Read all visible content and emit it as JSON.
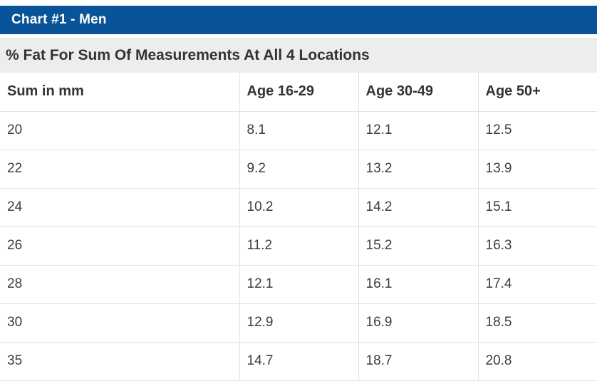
{
  "header": {
    "title": "Chart #1 - Men"
  },
  "caption": {
    "text": "% Fat For Sum Of Measurements At All 4 Locations"
  },
  "table": {
    "columns": [
      "Sum in mm",
      "Age 16-29",
      "Age 30-49",
      "Age 50+"
    ],
    "rows": [
      [
        "20",
        "8.1",
        "12.1",
        "12.5"
      ],
      [
        "22",
        "9.2",
        "13.2",
        "13.9"
      ],
      [
        "24",
        "10.2",
        "14.2",
        "15.1"
      ],
      [
        "26",
        "11.2",
        "15.2",
        "16.3"
      ],
      [
        "28",
        "12.1",
        "16.1",
        "17.4"
      ],
      [
        "30",
        "12.9",
        "16.9",
        "18.5"
      ],
      [
        "35",
        "14.7",
        "18.7",
        "20.8"
      ]
    ]
  },
  "chart_data": {
    "type": "table",
    "title": "Chart #1 - Men",
    "subtitle": "% Fat For Sum Of Measurements At All 4 Locations",
    "columns": [
      "Sum in mm",
      "Age 16-29",
      "Age 30-49",
      "Age 50+"
    ],
    "rows": [
      [
        20,
        8.1,
        12.1,
        12.5
      ],
      [
        22,
        9.2,
        13.2,
        13.9
      ],
      [
        24,
        10.2,
        14.2,
        15.1
      ],
      [
        26,
        11.2,
        15.2,
        16.3
      ],
      [
        28,
        12.1,
        16.1,
        17.4
      ],
      [
        30,
        12.9,
        16.9,
        18.5
      ],
      [
        35,
        14.7,
        18.7,
        20.8
      ]
    ]
  },
  "colors": {
    "title_bar_bg": "#095498",
    "title_bar_fg": "#ffffff",
    "caption_bar_bg": "#ededed",
    "text": "#3d3d3d",
    "border": "#e2e2e2"
  }
}
